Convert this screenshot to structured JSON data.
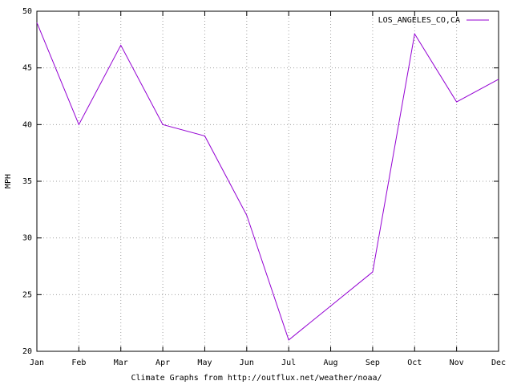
{
  "chart_data": {
    "type": "line",
    "xlabel": "Climate Graphs from http://outflux.net/weather/noaa/",
    "ylabel": "MPH",
    "categories": [
      "Jan",
      "Feb",
      "Mar",
      "Apr",
      "May",
      "Jun",
      "Jul",
      "Aug",
      "Sep",
      "Oct",
      "Nov",
      "Dec"
    ],
    "series": [
      {
        "name": "LOS_ANGELES_CO,CA",
        "color": "#9400d3",
        "values": [
          49,
          40,
          47,
          40,
          39,
          32,
          21,
          24,
          27,
          48,
          42,
          44
        ]
      }
    ],
    "ylim": [
      20,
      50
    ],
    "yticks": [
      20,
      25,
      30,
      35,
      40,
      45,
      50
    ],
    "grid": true,
    "legend": "top-right"
  }
}
